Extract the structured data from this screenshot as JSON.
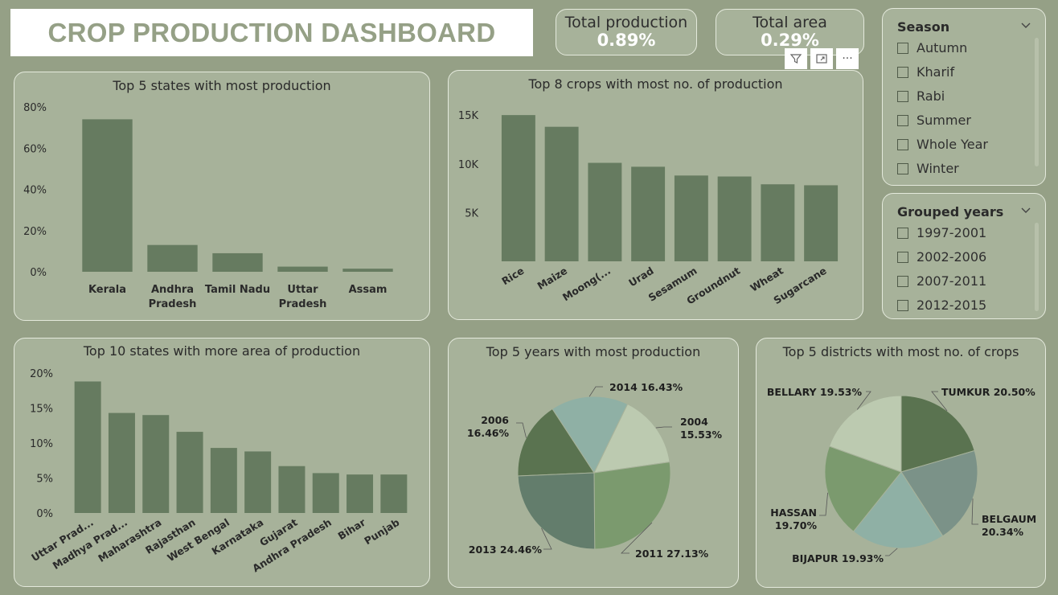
{
  "dashboard": {
    "title": "CROP PRODUCTION DASHBOARD"
  },
  "kpis": {
    "production_label": "Total production",
    "production_value": "0.89%",
    "area_label": "Total area",
    "area_value": "0.29%"
  },
  "toolbar": {
    "filter_icon": "filter-icon",
    "focus_icon": "focus-mode-icon",
    "more_icon": "more-options-icon",
    "more_label": "···"
  },
  "slicers": {
    "season": {
      "title": "Season",
      "options": [
        "Autumn",
        "Kharif",
        "Rabi",
        "Summer",
        "Whole Year",
        "Winter"
      ]
    },
    "years": {
      "title": "Grouped years",
      "options": [
        "1997-2001",
        "2002-2006",
        "2007-2011",
        "2012-2015"
      ]
    }
  },
  "colors": {
    "background": "#95a086",
    "panel": "#a7b29a",
    "bar": "#667b60",
    "title_text": "#95a086",
    "pie_years": [
      "#5a7350",
      "#8fb0a5",
      "#bccab0",
      "#7b9a6e",
      "#637d6c"
    ],
    "pie_districts": [
      "#5a7350",
      "#7b9288",
      "#8fb0a5",
      "#7b9a6e",
      "#bccab0"
    ]
  },
  "chart_data": [
    {
      "type": "bar",
      "title": "Top 5 states with most production",
      "categories": [
        "Kerala",
        "Andhra Pradesh",
        "Tamil Nadu",
        "Uttar Pradesh",
        "Assam"
      ],
      "category_lines": [
        [
          "Kerala"
        ],
        [
          "Andhra",
          "Pradesh"
        ],
        [
          "Tamil Nadu"
        ],
        [
          "Uttar",
          "Pradesh"
        ],
        [
          "Assam"
        ]
      ],
      "values": [
        74,
        13,
        9,
        2.5,
        1.5
      ],
      "ylim": [
        0,
        80
      ],
      "yticks": [
        0,
        20,
        40,
        60,
        80
      ],
      "ytick_labels": [
        "0%",
        "20%",
        "40%",
        "60%",
        "80%"
      ],
      "xlabel": "",
      "ylabel": "",
      "grid": false
    },
    {
      "type": "bar",
      "title": "Top 8 crops with most no. of production",
      "categories": [
        "Rice",
        "Maize",
        "Moong(...",
        "Urad",
        "Sesamum",
        "Groundnut",
        "Wheat",
        "Sugarcane"
      ],
      "values": [
        15000,
        13800,
        10100,
        9700,
        8800,
        8700,
        7900,
        7800
      ],
      "ylim": [
        0,
        16000
      ],
      "yticks": [
        5000,
        10000,
        15000
      ],
      "ytick_labels": [
        "5K",
        "10K",
        "15K"
      ],
      "xlabel": "",
      "ylabel": "",
      "grid": false
    },
    {
      "type": "bar",
      "title": "Top 10 states with more area of production",
      "categories": [
        "Uttar Prad...",
        "Madhya Prad...",
        "Maharashtra",
        "Rajasthan",
        "West Bengal",
        "Karnataka",
        "Gujarat",
        "Andhra Pradesh",
        "Bihar",
        "Punjab"
      ],
      "values": [
        18.8,
        14.3,
        14,
        11.6,
        9.3,
        8.8,
        6.7,
        5.7,
        5.5,
        5.5
      ],
      "ylim": [
        0,
        20
      ],
      "yticks": [
        0,
        5,
        10,
        15,
        20
      ],
      "ytick_labels": [
        "0%",
        "5%",
        "10%",
        "15%",
        "20%"
      ],
      "xlabel": "",
      "ylabel": "",
      "grid": false
    },
    {
      "type": "pie",
      "title": "Top 5 years with most production",
      "labels": [
        "2006",
        "2014",
        "2004",
        "2011",
        "2013"
      ],
      "values": [
        16.46,
        16.43,
        15.53,
        27.13,
        24.46
      ],
      "display": [
        [
          "2006",
          "16.46%"
        ],
        [
          "2014 16.43%"
        ],
        [
          "2004",
          "15.53%"
        ],
        [
          "2011 27.13%"
        ],
        [
          "2013 24.46%"
        ]
      ]
    },
    {
      "type": "pie",
      "title": "Top 5 districts with most no. of crops",
      "labels": [
        "TUMKUR",
        "BELGAUM",
        "BIJAPUR",
        "HASSAN",
        "BELLARY"
      ],
      "values": [
        20.5,
        20.34,
        19.93,
        19.7,
        19.53
      ],
      "display": [
        [
          "TUMKUR 20.50%"
        ],
        [
          "BELGAUM",
          "20.34%"
        ],
        [
          "BIJAPUR 19.93%"
        ],
        [
          "HASSAN",
          "19.70%"
        ],
        [
          "BELLARY 19.53%"
        ]
      ]
    }
  ]
}
